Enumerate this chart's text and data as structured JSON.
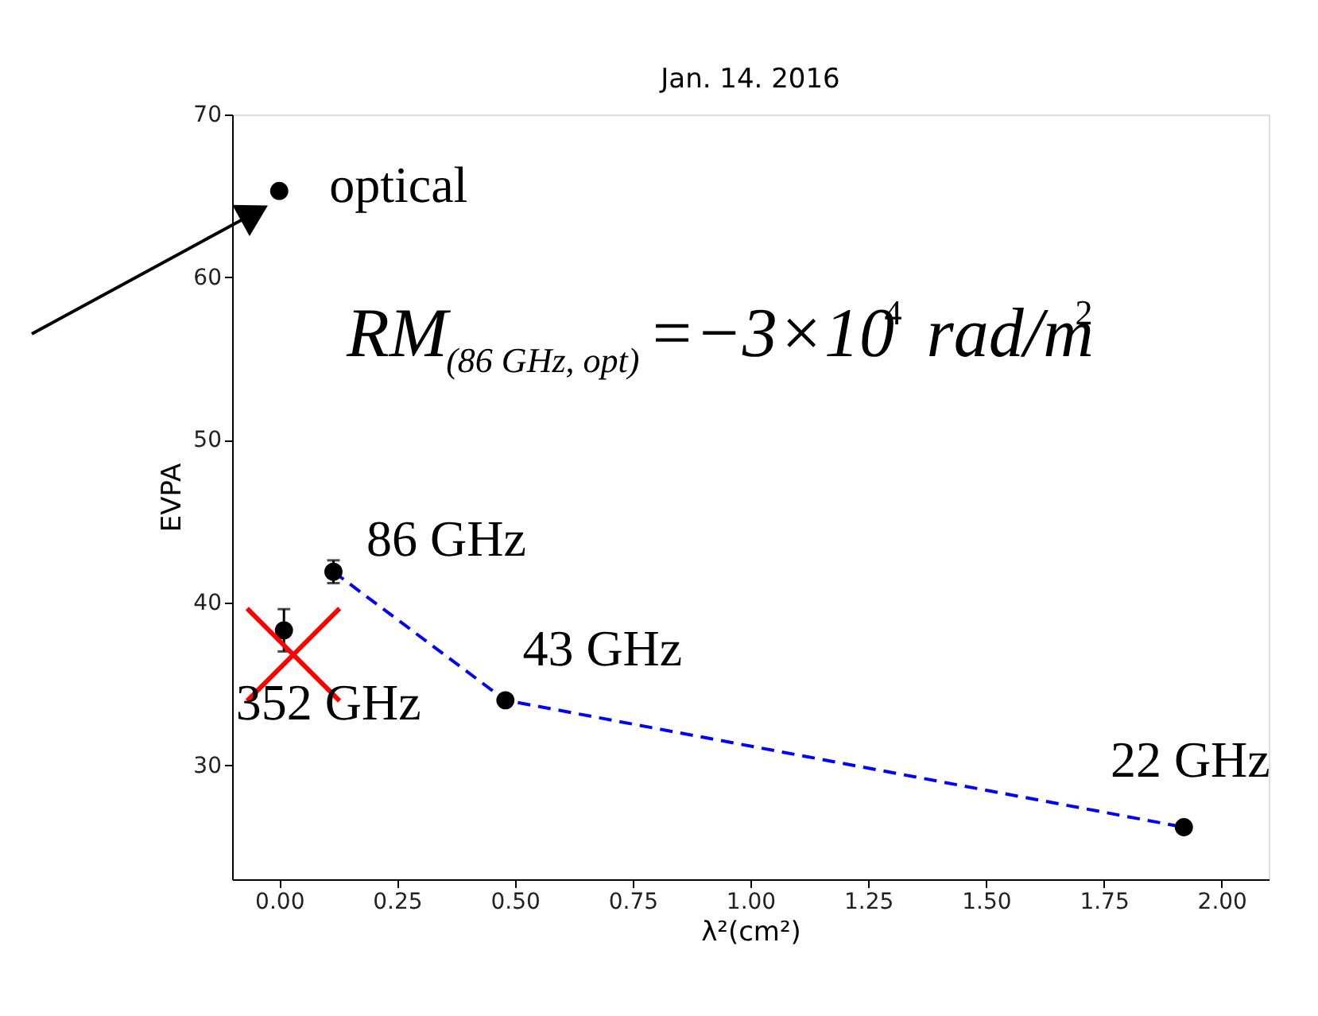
{
  "chart_data": {
    "type": "scatter",
    "title": "Jan. 14. 2016",
    "xlabel": "λ²(cm²)",
    "ylabel": "EVPA",
    "xlim": [
      -0.1,
      2.1
    ],
    "ylim": [
      23,
      70
    ],
    "xticks": [
      {
        "value": 0,
        "label": "0.00"
      },
      {
        "value": 0.25,
        "label": "0.25"
      },
      {
        "value": 0.5,
        "label": "0.50"
      },
      {
        "value": 0.75,
        "label": "0.75"
      },
      {
        "value": 1,
        "label": "1.00"
      },
      {
        "value": 1.25,
        "label": "1.25"
      },
      {
        "value": 1.5,
        "label": "1.50"
      },
      {
        "value": 1.75,
        "label": "1.75"
      },
      {
        "value": 2,
        "label": "2.00"
      }
    ],
    "yticks": [
      30,
      40,
      50,
      60,
      70
    ],
    "grid": false,
    "series": [
      {
        "type": "line",
        "color": "#0000ff",
        "line_style": "dashed",
        "marker": "none",
        "x": [
          0.115,
          0.48,
          1.92
        ],
        "values": [
          41.9,
          34.0,
          26.2
        ]
      },
      {
        "color": "#000000",
        "marker": "circle",
        "x": [
          0,
          0.01,
          0.115,
          0.48,
          1.92
        ],
        "values": [
          65.3,
          38.3,
          41.9,
          34.0,
          26.2
        ],
        "errors": [
          null,
          1.3,
          0.7,
          null,
          null
        ]
      },
      {
        "color": "#ff0000",
        "marker": "cross",
        "x": [
          0.03
        ],
        "values": [
          36.8
        ]
      }
    ],
    "annotations": [
      {
        "text": "optical",
        "x": 0,
        "y": 65.3
      },
      {
        "text": "86 GHz",
        "x": 0.115,
        "y": 41.9
      },
      {
        "text": "43 GHz",
        "x": 0.48,
        "y": 34.0
      },
      {
        "text": "352 GHz",
        "x": 0.01,
        "y": 38.3
      },
      {
        "text": "22 GHz",
        "x": 1.92,
        "y": 26.2
      },
      "RM$_{(86 GHz, opt)}$=−3×10$^{4}$ rad/m$^{2}$"
    ]
  }
}
